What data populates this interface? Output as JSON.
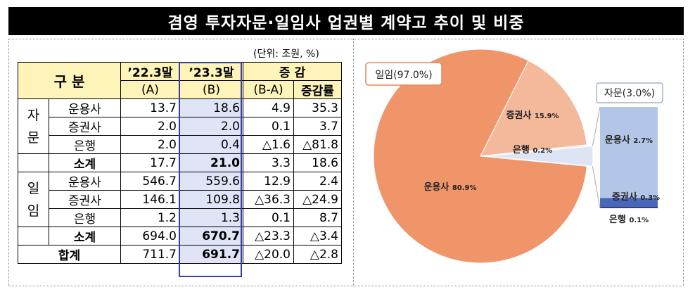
{
  "title": "겸영 투자자문·일임사 업권별 계약고 추이 및 비중",
  "unit": "(단위: 조원, %)",
  "table": {
    "header": {
      "category": "구 분",
      "col_a_top": "’22.3말",
      "col_a_bottom": "(A)",
      "col_b_top": "’23.3말",
      "col_b_bottom": "(B)",
      "diff_top": "증 감",
      "diff_bottom": "(B-A)",
      "rate": "증감률"
    },
    "groups": [
      {
        "label_1": "자",
        "label_2": "문",
        "rows": [
          {
            "name": "운용사",
            "a": "13.7",
            "b": "18.6",
            "diff": "4.9",
            "rate": "35.3"
          },
          {
            "name": "증권사",
            "a": "2.0",
            "b": "2.0",
            "diff": "0.1",
            "rate": "3.7"
          },
          {
            "name": "은행",
            "a": "2.0",
            "b": "0.4",
            "diff": "△1.6",
            "rate": "△81.8"
          },
          {
            "name": "소계",
            "a": "17.7",
            "b": "21.0",
            "diff": "3.3",
            "rate": "18.6"
          }
        ]
      },
      {
        "label_1": "일",
        "label_2": "임",
        "rows": [
          {
            "name": "운용사",
            "a": "546.7",
            "b": "559.6",
            "diff": "12.9",
            "rate": "2.4"
          },
          {
            "name": "증권사",
            "a": "146.1",
            "b": "109.8",
            "diff": "△36.3",
            "rate": "△24.9"
          },
          {
            "name": "은행",
            "a": "1.2",
            "b": "1.3",
            "diff": "0.1",
            "rate": "8.7"
          },
          {
            "name": "소계",
            "a": "694.0",
            "b": "670.7",
            "diff": "△23.3",
            "rate": "△3.4"
          }
        ]
      }
    ],
    "total": {
      "name": "합계",
      "a": "711.7",
      "b": "691.7",
      "diff": "△20.0",
      "rate": "△2.8"
    }
  },
  "chart_data": {
    "type": "pie",
    "title": "",
    "slices": [
      {
        "label": "운용사 80.9%",
        "value": 80.9,
        "color": "#f0956a"
      },
      {
        "label": "증권사 15.9%",
        "value": 15.9,
        "color": "#f4b99b"
      },
      {
        "label": "은행 0.2%",
        "value": 0.2,
        "color": "#f9d8c6"
      },
      {
        "label": "자문",
        "value": 3.0,
        "color": "#dde5f5"
      }
    ],
    "group_label": "일임(97.0%)",
    "breakdown": {
      "label": "자문(3.0%)",
      "items": [
        {
          "label": "운용사 2.7%",
          "value": 2.7,
          "color": "#b4c6e7"
        },
        {
          "label": "증권사 0.3%",
          "value": 0.3,
          "color": "#4a66b8"
        },
        {
          "label": "은행 0.1%",
          "value": 0.1,
          "color": "#2e3f8f"
        }
      ]
    }
  }
}
